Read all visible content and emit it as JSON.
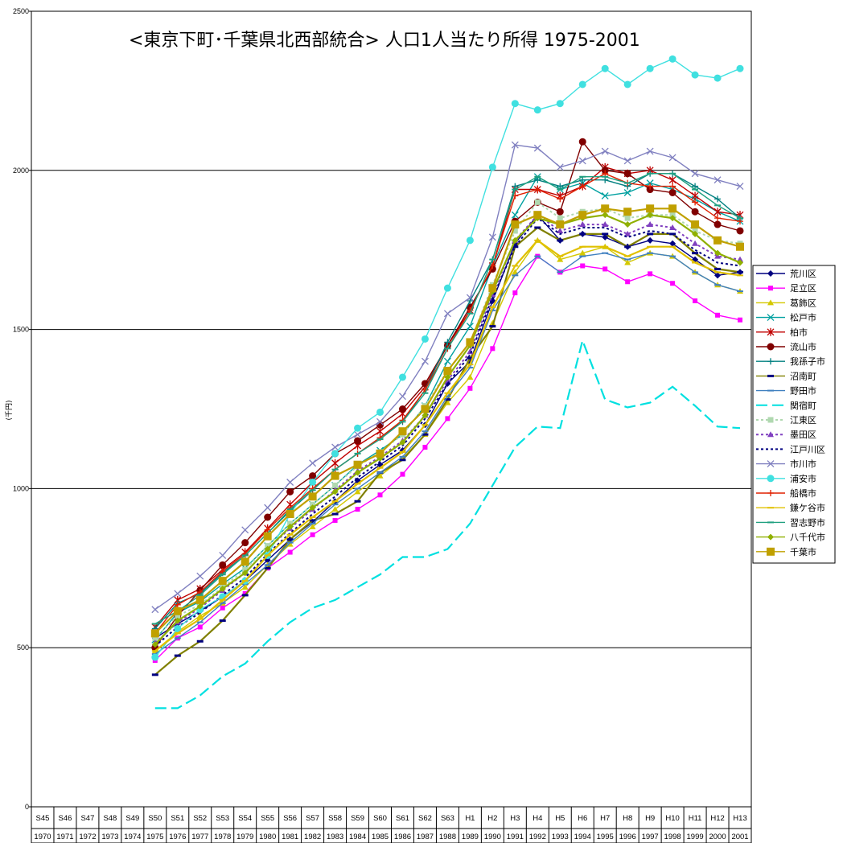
{
  "chart_data": {
    "type": "line",
    "title": "<東京下町･千葉県北西部統合> 人口1人当たり所得 1975-2001",
    "ylabel": "(千円)",
    "ylim": [
      0,
      2500
    ],
    "yticks": [
      "0",
      "500",
      "1000",
      "1500",
      "2000",
      "2500"
    ],
    "gridlines": [
      500,
      1000,
      1500,
      2000
    ],
    "categories": [
      "S45",
      "S46",
      "S47",
      "S48",
      "S49",
      "S50",
      "S51",
      "S52",
      "S53",
      "S54",
      "S55",
      "S56",
      "S57",
      "S58",
      "S59",
      "S60",
      "S61",
      "S62",
      "S63",
      "H1",
      "H2",
      "H3",
      "H4",
      "H5",
      "H6",
      "H7",
      "H8",
      "H9",
      "H10",
      "H11",
      "H12",
      "H13"
    ],
    "years": [
      "1970",
      "1971",
      "1972",
      "1973",
      "1974",
      "1975",
      "1976",
      "1977",
      "1978",
      "1979",
      "1980",
      "1981",
      "1982",
      "1983",
      "1984",
      "1985",
      "1986",
      "1987",
      "1988",
      "1989",
      "1990",
      "1991",
      "1992",
      "1993",
      "1994",
      "1995",
      "1996",
      "1997",
      "1998",
      "1999",
      "2000",
      "2001"
    ],
    "legend_position": "right",
    "series": [
      {
        "name": "荒川区",
        "color": "#000080",
        "marker": "diamond",
        "dash": "",
        "values": [
          null,
          null,
          null,
          null,
          null,
          530,
          575,
          615,
          660,
          710,
          775,
          840,
          895,
          960,
          1025,
          1075,
          1120,
          1200,
          1330,
          1400,
          1590,
          1770,
          1860,
          1780,
          1800,
          1790,
          1760,
          1780,
          1770,
          1720,
          1670,
          1680
        ]
      },
      {
        "name": "足立区",
        "color": "#ff00ff",
        "marker": "square",
        "dash": "",
        "values": [
          null,
          null,
          null,
          null,
          null,
          460,
          530,
          565,
          625,
          670,
          750,
          800,
          855,
          900,
          935,
          980,
          1045,
          1130,
          1220,
          1315,
          1440,
          1615,
          1730,
          1680,
          1700,
          1690,
          1650,
          1675,
          1645,
          1590,
          1545,
          1530
        ]
      },
      {
        "name": "葛飾区",
        "color": "#d4c800",
        "marker": "triangle",
        "dash": "",
        "values": [
          null,
          null,
          null,
          null,
          null,
          490,
          550,
          600,
          640,
          690,
          760,
          825,
          880,
          935,
          990,
          1040,
          1095,
          1170,
          1270,
          1350,
          1520,
          1680,
          1780,
          1720,
          1740,
          1760,
          1710,
          1740,
          1730,
          1680,
          1640,
          1620
        ]
      },
      {
        "name": "松戸市",
        "color": "#00a0a0",
        "marker": "x",
        "dash": "",
        "values": [
          null,
          null,
          null,
          null,
          null,
          525,
          610,
          645,
          700,
          750,
          820,
          890,
          950,
          1010,
          1075,
          1120,
          1170,
          1260,
          1400,
          1510,
          1700,
          1860,
          1980,
          1940,
          1960,
          1920,
          1930,
          1960,
          1940,
          1910,
          1870,
          1840
        ]
      },
      {
        "name": "柏市",
        "color": "#c00000",
        "marker": "star",
        "dash": "",
        "values": [
          null,
          null,
          null,
          null,
          null,
          565,
          650,
          685,
          745,
          800,
          875,
          950,
          1020,
          1080,
          1135,
          1180,
          1235,
          1320,
          1450,
          1560,
          1700,
          1940,
          1940,
          1920,
          1950,
          2010,
          1990,
          2000,
          1970,
          1920,
          1870,
          1860
        ]
      },
      {
        "name": "流山市",
        "color": "#800000",
        "marker": "circle",
        "dash": "",
        "values": [
          null,
          null,
          null,
          null,
          null,
          500,
          600,
          680,
          760,
          830,
          910,
          990,
          1040,
          1110,
          1150,
          1200,
          1250,
          1330,
          1450,
          1570,
          1690,
          1840,
          1900,
          1870,
          2090,
          2000,
          1990,
          1940,
          1930,
          1870,
          1830,
          1810
        ]
      },
      {
        "name": "我孫子市",
        "color": "#008080",
        "marker": "plus",
        "dash": "",
        "values": [
          null,
          null,
          null,
          null,
          null,
          560,
          640,
          670,
          735,
          790,
          860,
          930,
          995,
          1060,
          1110,
          1160,
          1210,
          1310,
          1460,
          1590,
          1720,
          1950,
          1970,
          1950,
          1970,
          1970,
          1950,
          1990,
          1990,
          1950,
          1910,
          1850
        ]
      },
      {
        "name": "沼南町",
        "color": "#808000",
        "marker": "dash",
        "dash": "",
        "values": [
          null,
          null,
          null,
          null,
          null,
          415,
          475,
          520,
          585,
          665,
          750,
          840,
          900,
          920,
          960,
          1050,
          1090,
          1170,
          1280,
          1410,
          1510,
          1760,
          1820,
          1780,
          1800,
          1800,
          1760,
          1800,
          1800,
          1740,
          1690,
          1680
        ]
      },
      {
        "name": "野田市",
        "color": "#4080c0",
        "marker": "hline",
        "dash": "",
        "values": [
          null,
          null,
          null,
          null,
          null,
          480,
          530,
          580,
          640,
          700,
          760,
          830,
          890,
          950,
          1000,
          1050,
          1100,
          1180,
          1290,
          1380,
          1560,
          1670,
          1730,
          1680,
          1730,
          1740,
          1720,
          1740,
          1730,
          1680,
          1640,
          1620
        ]
      },
      {
        "name": "関宿町",
        "color": "#00e0e0",
        "marker": "none",
        "dash": "14,6",
        "values": [
          null,
          null,
          null,
          null,
          null,
          310,
          310,
          350,
          410,
          450,
          520,
          580,
          625,
          650,
          690,
          730,
          785,
          785,
          810,
          890,
          1010,
          1130,
          1195,
          1190,
          1465,
          1280,
          1255,
          1270,
          1320,
          1260,
          1195,
          1190
        ]
      },
      {
        "name": "江東区",
        "color": "#b0d8b0",
        "marker": "square-light",
        "dash": "3,3",
        "values": [
          null,
          null,
          null,
          null,
          null,
          530,
          600,
          635,
          690,
          745,
          820,
          890,
          950,
          1010,
          1070,
          1115,
          1170,
          1260,
          1370,
          1460,
          1640,
          1810,
          1900,
          1850,
          1870,
          1880,
          1850,
          1860,
          1860,
          1810,
          1780,
          1770
        ]
      },
      {
        "name": "墨田区",
        "color": "#8040c0",
        "marker": "triangle-light",
        "dash": "3,3",
        "values": [
          null,
          null,
          null,
          null,
          null,
          515,
          580,
          625,
          680,
          735,
          810,
          875,
          935,
          995,
          1055,
          1100,
          1150,
          1230,
          1340,
          1430,
          1610,
          1780,
          1860,
          1810,
          1830,
          1830,
          1800,
          1830,
          1820,
          1770,
          1730,
          1720
        ]
      },
      {
        "name": "江戸川区",
        "color": "#000080",
        "marker": "none",
        "dash": "3,3",
        "values": [
          null,
          null,
          null,
          null,
          null,
          505,
          565,
          610,
          665,
          720,
          795,
          860,
          920,
          975,
          1035,
          1085,
          1135,
          1220,
          1330,
          1420,
          1600,
          1760,
          1850,
          1800,
          1820,
          1820,
          1790,
          1810,
          1800,
          1750,
          1710,
          1700
        ]
      },
      {
        "name": "市川市",
        "color": "#8080c0",
        "marker": "x",
        "dash": "",
        "values": [
          null,
          null,
          null,
          null,
          null,
          620,
          670,
          725,
          790,
          870,
          940,
          1020,
          1080,
          1130,
          1170,
          1210,
          1290,
          1400,
          1550,
          1600,
          1790,
          2080,
          2070,
          2010,
          2030,
          2060,
          2030,
          2060,
          2040,
          1990,
          1970,
          1950
        ]
      },
      {
        "name": "浦安市",
        "color": "#40e0e0",
        "marker": "circle-light",
        "dash": "",
        "values": [
          null,
          null,
          null,
          null,
          null,
          470,
          560,
          620,
          660,
          710,
          790,
          920,
          1020,
          1110,
          1190,
          1240,
          1350,
          1470,
          1630,
          1780,
          2010,
          2210,
          2190,
          2210,
          2270,
          2320,
          2270,
          2320,
          2350,
          2300,
          2290,
          2320
        ]
      },
      {
        "name": "船橋市",
        "color": "#e02000",
        "marker": "plus",
        "dash": "",
        "values": [
          null,
          null,
          null,
          null,
          null,
          545,
          635,
          675,
          740,
          795,
          870,
          940,
          1000,
          1060,
          1110,
          1160,
          1215,
          1310,
          1440,
          1560,
          1700,
          1920,
          1940,
          1910,
          1950,
          1990,
          1960,
          1950,
          1950,
          1900,
          1850,
          1840
        ]
      },
      {
        "name": "鎌ケ谷市",
        "color": "#e0c000",
        "marker": "hline",
        "dash": "",
        "values": [
          null,
          null,
          null,
          null,
          null,
          490,
          545,
          590,
          650,
          710,
          790,
          855,
          910,
          960,
          1015,
          1065,
          1115,
          1200,
          1300,
          1390,
          1570,
          1700,
          1780,
          1730,
          1760,
          1760,
          1730,
          1760,
          1760,
          1710,
          1680,
          1670
        ]
      },
      {
        "name": "習志野市",
        "color": "#20a080",
        "marker": "hline",
        "dash": "",
        "values": [
          null,
          null,
          null,
          null,
          null,
          575,
          615,
          665,
          730,
          790,
          860,
          935,
          995,
          1060,
          1110,
          1155,
          1210,
          1300,
          1440,
          1550,
          1720,
          1940,
          1980,
          1940,
          1980,
          1980,
          1960,
          1990,
          1990,
          1940,
          1890,
          1850
        ]
      },
      {
        "name": "八千代市",
        "color": "#90b000",
        "marker": "diamond",
        "dash": "",
        "values": [
          null,
          null,
          null,
          null,
          null,
          510,
          585,
          630,
          685,
          735,
          810,
          880,
          940,
          990,
          1050,
          1095,
          1145,
          1230,
          1350,
          1450,
          1620,
          1780,
          1850,
          1830,
          1850,
          1860,
          1830,
          1860,
          1850,
          1800,
          1740,
          1710
        ]
      },
      {
        "name": "千葉市",
        "color": "#c0a000",
        "marker": "bigsquare",
        "dash": "",
        "values": [
          null,
          null,
          null,
          null,
          null,
          545,
          615,
          650,
          710,
          770,
          850,
          920,
          975,
          1040,
          1075,
          1110,
          1180,
          1250,
          1370,
          1460,
          1630,
          1830,
          1860,
          1830,
          1860,
          1880,
          1870,
          1880,
          1880,
          1830,
          1780,
          1760
        ]
      }
    ]
  }
}
